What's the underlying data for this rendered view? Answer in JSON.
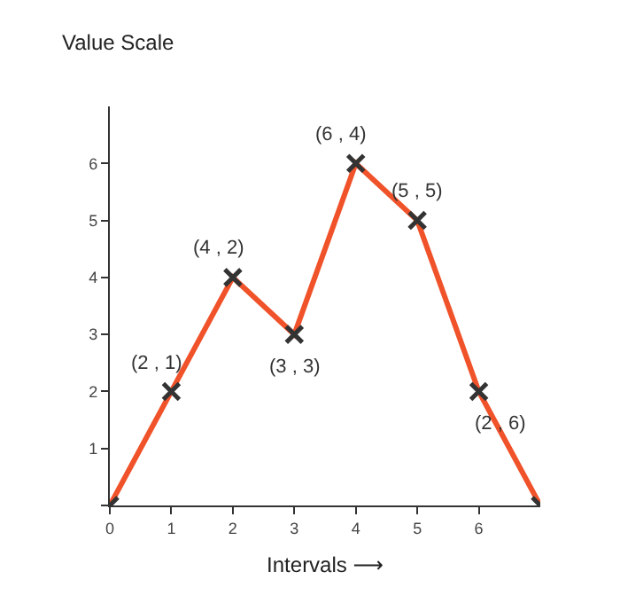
{
  "chart_data": {
    "type": "line",
    "xlabel": "Intervals ⟶",
    "ylabel": "Value Scale",
    "x": [
      0,
      1,
      2,
      3,
      4,
      5,
      6,
      7
    ],
    "series": [
      {
        "color": "#f0522a",
        "values": [
          0,
          2,
          4,
          3,
          6,
          5,
          2,
          0
        ]
      }
    ],
    "xlim": [
      0,
      7
    ],
    "xticks": [
      0,
      1,
      2,
      3,
      4,
      5,
      6
    ],
    "ylim": [
      0,
      7
    ],
    "yticks": [
      {
        "value": 0,
        "label": null
      },
      1,
      2,
      3,
      4,
      5,
      6
    ],
    "marker": "cross",
    "line_style": "solid",
    "grid": false,
    "annotations": [
      {
        "text": "(2 , 1)",
        "x": 1,
        "y": 2
      },
      {
        "text": "(4 , 2)",
        "x": 2,
        "y": 4
      },
      {
        "text": "(3 , 3)",
        "x": 3,
        "y": 3
      },
      {
        "text": "(6 , 4)",
        "x": 4,
        "y": 6
      },
      {
        "text": "(5 , 5)",
        "x": 5,
        "y": 5
      },
      {
        "text": "(2 , 6)",
        "x": 6,
        "y": 2
      }
    ]
  }
}
